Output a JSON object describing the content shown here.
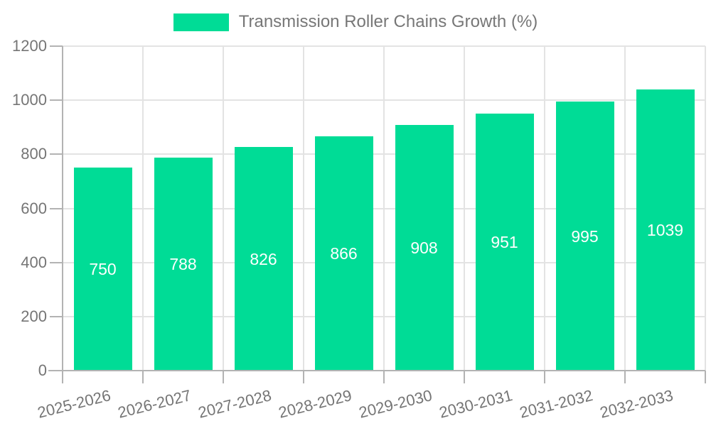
{
  "chart_data": {
    "type": "bar",
    "title": "Transmission Roller Chains Growth (%)",
    "legend": {
      "label": "Transmission Roller Chains Growth (%)",
      "position": "top-center"
    },
    "categories": [
      "2025-2026",
      "2026-2027",
      "2027-2028",
      "2028-2029",
      "2029-2030",
      "2030-2031",
      "2031-2032",
      "2032-2033"
    ],
    "series": [
      {
        "name": "Transmission Roller Chains Growth (%)",
        "values": [
          750,
          788,
          826,
          866,
          908,
          951,
          995,
          1039
        ]
      }
    ],
    "value_labels_shown": true,
    "xlabel": "",
    "ylabel": "",
    "ylim": [
      0,
      1200
    ],
    "yticks": [
      0,
      200,
      400,
      600,
      800,
      1000,
      1200
    ],
    "grid": true,
    "x_label_rotation_deg": -14,
    "colors": {
      "bar": "#00DC96",
      "value_label": "#FFFFFF",
      "axis_text": "#757575",
      "legend_text": "#777777",
      "grid_line": "#E3E3E3",
      "axis_line": "#B3B3B3",
      "background": "#FFFFFF"
    }
  }
}
